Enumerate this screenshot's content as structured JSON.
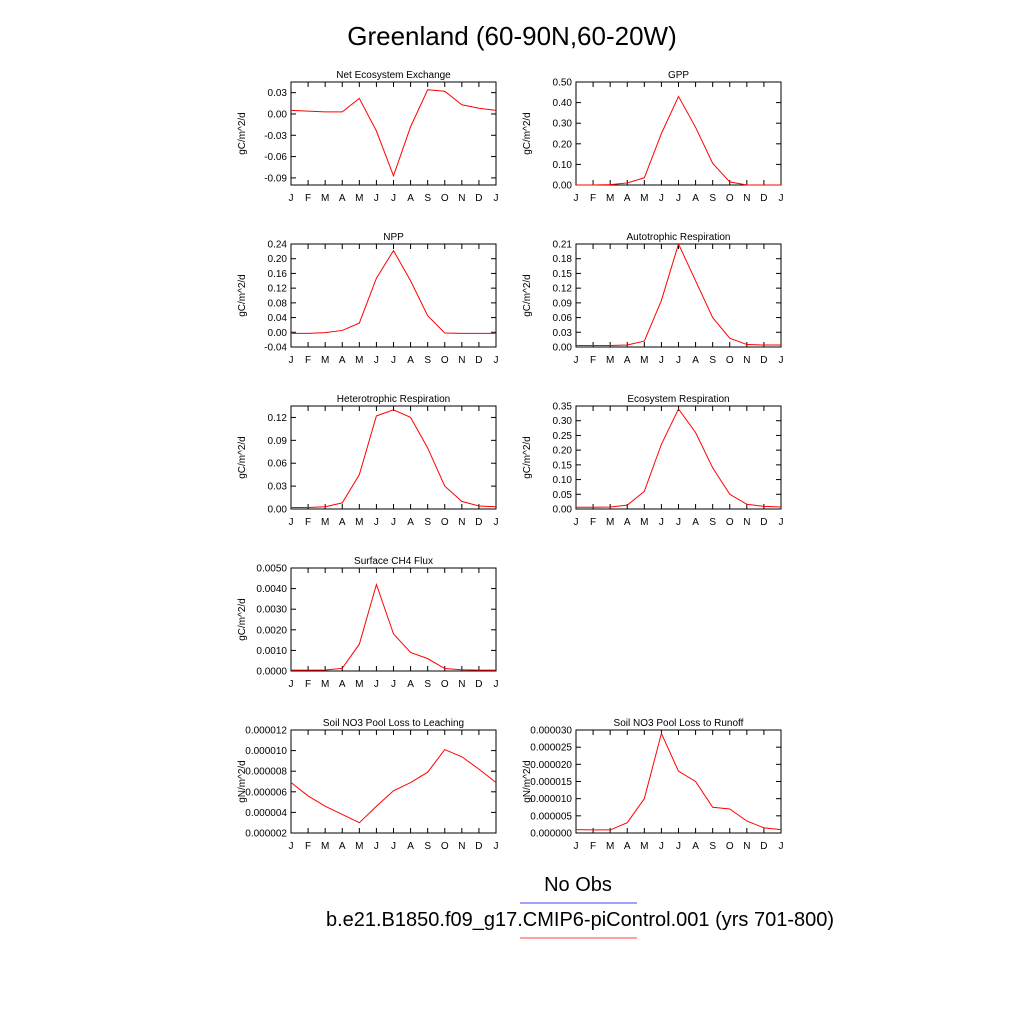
{
  "title": "Greenland (60-90N,60-20W)",
  "colors": {
    "model": "#ff0000",
    "obs": "#0000ff",
    "model_legend": "#ff8080",
    "obs_legend": "#8080ff"
  },
  "months": [
    "J",
    "F",
    "M",
    "A",
    "M",
    "J",
    "J",
    "A",
    "S",
    "O",
    "N",
    "D",
    "J"
  ],
  "legend": {
    "obs_label": "No Obs",
    "case_label": "b.e21.B1850.f09_g17.CMIP6-piControl.001 (yrs 701-800)"
  },
  "chart_data": [
    {
      "type": "line",
      "title": "Net Ecosystem Exchange",
      "ylabel": "gC/m^2/d",
      "ylim": [
        -0.1,
        0.045
      ],
      "yticks": [
        0.03,
        0.0,
        -0.03,
        -0.06,
        -0.09
      ],
      "yticklabels": [
        "0.03",
        "0.00",
        "-0.03",
        "-0.06",
        "-0.09"
      ],
      "series": [
        {
          "values": [
            0.005,
            0.004,
            0.003,
            0.003,
            0.022,
            -0.024,
            -0.087,
            -0.018,
            0.034,
            0.032,
            0.013,
            0.008,
            0.005
          ]
        }
      ]
    },
    {
      "type": "line",
      "title": "GPP",
      "ylabel": "gC/m^2/d",
      "ylim": [
        0.0,
        0.5
      ],
      "yticks": [
        0.0,
        0.1,
        0.2,
        0.3,
        0.4,
        0.5
      ],
      "yticklabels": [
        "0.00",
        "0.10",
        "0.20",
        "0.30",
        "0.40",
        "0.50"
      ],
      "series": [
        {
          "values": [
            0.0,
            0.0,
            0.002,
            0.01,
            0.035,
            0.25,
            0.43,
            0.28,
            0.105,
            0.015,
            0.0,
            0.0,
            0.0
          ]
        }
      ]
    },
    {
      "type": "line",
      "title": "NPP",
      "ylabel": "gC/m^2/d",
      "ylim": [
        -0.04,
        0.24
      ],
      "yticks": [
        -0.04,
        0.0,
        0.04,
        0.08,
        0.12,
        0.16,
        0.2,
        0.24
      ],
      "yticklabels": [
        "-0.04",
        "0.00",
        "0.04",
        "0.08",
        "0.12",
        "0.16",
        "0.20",
        "0.24"
      ],
      "series": [
        {
          "values": [
            -0.003,
            -0.003,
            -0.001,
            0.005,
            0.025,
            0.147,
            0.222,
            0.14,
            0.045,
            -0.002,
            -0.003,
            -0.003,
            -0.003
          ]
        }
      ]
    },
    {
      "type": "line",
      "title": "Autotrophic Respiration",
      "ylabel": "gC/m^2/d",
      "ylim": [
        0.0,
        0.21
      ],
      "yticks": [
        0.0,
        0.03,
        0.06,
        0.09,
        0.12,
        0.15,
        0.18,
        0.21
      ],
      "yticklabels": [
        "0.00",
        "0.03",
        "0.06",
        "0.09",
        "0.12",
        "0.15",
        "0.18",
        "0.21"
      ],
      "series": [
        {
          "values": [
            0.003,
            0.003,
            0.003,
            0.004,
            0.012,
            0.095,
            0.21,
            0.135,
            0.06,
            0.018,
            0.005,
            0.004,
            0.004
          ]
        }
      ]
    },
    {
      "type": "line",
      "title": "Heterotrophic Respiration",
      "ylabel": "gC/m^2/d",
      "ylim": [
        0.0,
        0.135
      ],
      "yticks": [
        0.0,
        0.03,
        0.06,
        0.09,
        0.12
      ],
      "yticklabels": [
        "0.00",
        "0.03",
        "0.06",
        "0.09",
        "0.12"
      ],
      "series": [
        {
          "values": [
            0.002,
            0.002,
            0.003,
            0.008,
            0.045,
            0.122,
            0.13,
            0.12,
            0.08,
            0.03,
            0.01,
            0.004,
            0.003
          ]
        }
      ]
    },
    {
      "type": "line",
      "title": "Ecosystem Respiration",
      "ylabel": "gC/m^2/d",
      "ylim": [
        0.0,
        0.35
      ],
      "yticks": [
        0.0,
        0.05,
        0.1,
        0.15,
        0.2,
        0.25,
        0.3,
        0.35
      ],
      "yticklabels": [
        "0.00",
        "0.05",
        "0.10",
        "0.15",
        "0.20",
        "0.25",
        "0.30",
        "0.35"
      ],
      "series": [
        {
          "values": [
            0.006,
            0.006,
            0.007,
            0.013,
            0.06,
            0.22,
            0.34,
            0.26,
            0.14,
            0.05,
            0.016,
            0.009,
            0.007
          ]
        }
      ]
    },
    {
      "type": "line",
      "title": "Surface CH4 Flux",
      "ylabel": "gC/m^2/d",
      "ylim": [
        0.0,
        0.005
      ],
      "yticks": [
        0.0,
        0.001,
        0.002,
        0.003,
        0.004,
        0.005
      ],
      "yticklabels": [
        "0.0000",
        "0.0010",
        "0.0020",
        "0.0030",
        "0.0040",
        "0.0050"
      ],
      "series": [
        {
          "values": [
            4e-05,
            4e-05,
            5e-05,
            0.00013,
            0.0013,
            0.0042,
            0.0018,
            0.0009,
            0.0006,
            0.00012,
            6e-05,
            4e-05,
            4e-05
          ]
        }
      ]
    },
    null,
    {
      "type": "line",
      "title": "Soil NO3 Pool Loss to Leaching",
      "ylabel": "gN/m^2/d",
      "ylim": [
        2e-06,
        1.2e-05
      ],
      "yticks": [
        2e-06,
        4e-06,
        6e-06,
        8e-06,
        1e-05,
        1.2e-05
      ],
      "yticklabels": [
        "0.000002",
        "0.000004",
        "0.000006",
        "0.000008",
        "0.000010",
        "0.000012"
      ],
      "series": [
        {
          "values": [
            6.9e-06,
            5.6e-06,
            4.6e-06,
            3.8e-06,
            3e-06,
            4.6e-06,
            6.1e-06,
            6.9e-06,
            7.9e-06,
            1.01e-05,
            9.4e-06,
            8.2e-06,
            6.9e-06
          ]
        }
      ]
    },
    {
      "type": "line",
      "title": "Soil NO3 Pool Loss to Runoff",
      "ylabel": "gN/m^2/d",
      "ylim": [
        0.0,
        3e-05
      ],
      "yticks": [
        0.0,
        5e-06,
        1e-05,
        1.5e-05,
        2e-05,
        2.5e-05,
        3e-05
      ],
      "yticklabels": [
        "0.000000",
        "0.000005",
        "0.000010",
        "0.000015",
        "0.000020",
        "0.000025",
        "0.000030"
      ],
      "series": [
        {
          "values": [
            1e-06,
            9e-07,
            9e-07,
            3e-06,
            1e-05,
            2.9e-05,
            1.8e-05,
            1.5e-05,
            7.5e-06,
            7e-06,
            3.5e-06,
            1.5e-06,
            1e-06
          ]
        }
      ]
    }
  ]
}
